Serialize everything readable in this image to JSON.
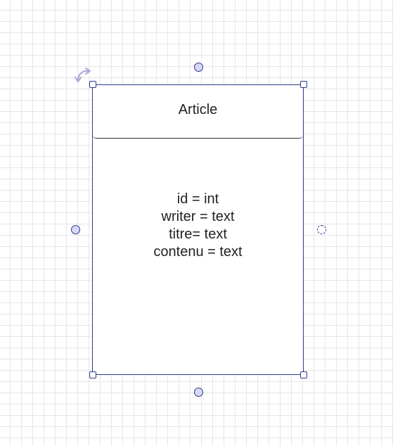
{
  "entity": {
    "title": "Article",
    "fields": [
      "id = int",
      "writer = text",
      "titre= text",
      "contenu = text"
    ]
  },
  "colors": {
    "grid": "#e6e6e6",
    "selection": "#2b3a8f",
    "connector_fill": "#d6d8f5",
    "text": "#222222"
  },
  "icons": {
    "rotate": "rotate-arrow-icon"
  }
}
